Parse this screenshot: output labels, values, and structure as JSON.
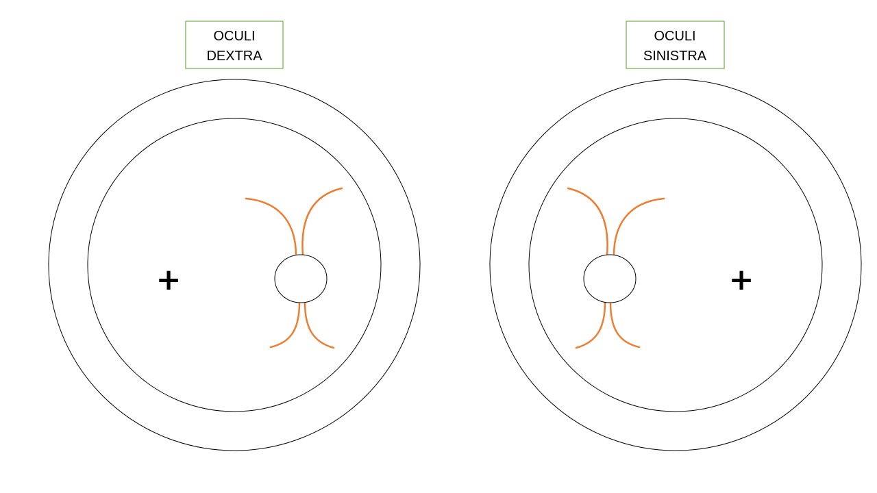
{
  "eyes": [
    {
      "id": "right-eye",
      "label_lines": [
        "OCULI",
        "DEXTRA"
      ],
      "fovea_marker": "+",
      "disc_side": "right"
    },
    {
      "id": "left-eye",
      "label_lines": [
        "OCULI",
        "SINISTRA"
      ],
      "fovea_marker": "+",
      "disc_side": "left"
    }
  ],
  "colors": {
    "label_border": "#70ad47",
    "vessels": "#ed7d31",
    "outline": "#000000"
  }
}
